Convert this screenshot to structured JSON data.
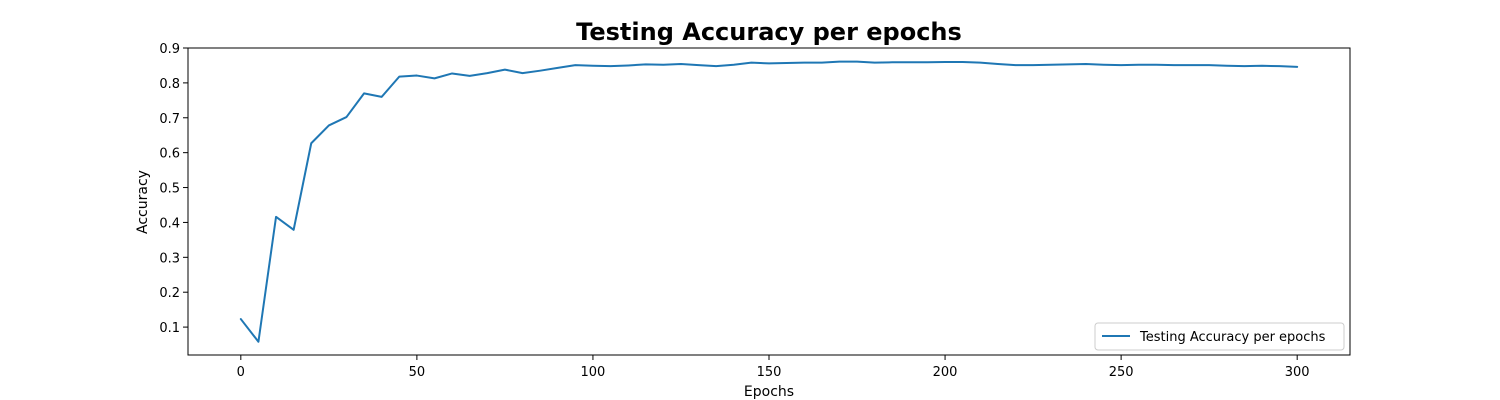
{
  "chart_data": {
    "type": "line",
    "title": "Testing Accuracy per epochs",
    "xlabel": "Epochs",
    "ylabel": "Accuracy",
    "xlim": [
      -15,
      315
    ],
    "ylim": [
      0.02,
      0.9
    ],
    "xticks": [
      0,
      50,
      100,
      150,
      200,
      250,
      300
    ],
    "yticks": [
      0.1,
      0.2,
      0.3,
      0.4,
      0.5,
      0.6,
      0.7,
      0.8,
      0.9
    ],
    "grid": false,
    "legend_position": "lower-right",
    "series": [
      {
        "name": "Testing Accuracy per epochs",
        "color": "#1f77b4",
        "x": [
          0,
          5,
          10,
          15,
          20,
          25,
          30,
          35,
          40,
          45,
          50,
          55,
          60,
          65,
          70,
          75,
          80,
          85,
          90,
          95,
          100,
          105,
          110,
          115,
          120,
          125,
          130,
          135,
          140,
          145,
          150,
          155,
          160,
          165,
          170,
          175,
          180,
          185,
          190,
          195,
          200,
          205,
          210,
          215,
          220,
          225,
          230,
          235,
          240,
          245,
          250,
          255,
          260,
          265,
          270,
          275,
          280,
          285,
          290,
          295,
          300
        ],
        "y": [
          0.123,
          0.058,
          0.416,
          0.379,
          0.627,
          0.678,
          0.702,
          0.77,
          0.76,
          0.818,
          0.821,
          0.813,
          0.827,
          0.82,
          0.828,
          0.838,
          0.828,
          0.835,
          0.843,
          0.851,
          0.849,
          0.848,
          0.85,
          0.853,
          0.852,
          0.854,
          0.851,
          0.848,
          0.852,
          0.858,
          0.856,
          0.857,
          0.858,
          0.858,
          0.861,
          0.861,
          0.858,
          0.859,
          0.859,
          0.859,
          0.86,
          0.86,
          0.858,
          0.854,
          0.851,
          0.851,
          0.852,
          0.853,
          0.854,
          0.852,
          0.851,
          0.852,
          0.852,
          0.851,
          0.851,
          0.851,
          0.849,
          0.848,
          0.849,
          0.848,
          0.846
        ]
      }
    ]
  }
}
